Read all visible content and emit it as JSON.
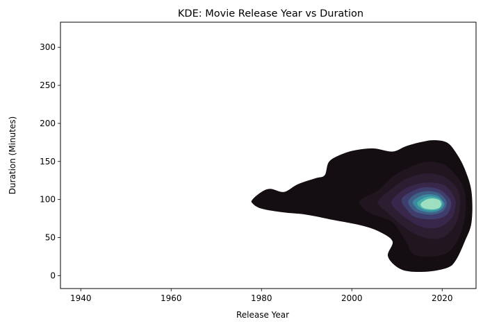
{
  "chart_data": {
    "type": "kde-contour",
    "title": "KDE: Movie Release Year vs Duration",
    "xlabel": "Release Year",
    "ylabel": "Duration (Minutes)",
    "xlim": [
      1935.5,
      2027.5
    ],
    "ylim": [
      -17,
      333
    ],
    "xticks": [
      1940,
      1960,
      1980,
      2000,
      2020
    ],
    "yticks": [
      0,
      50,
      100,
      150,
      200,
      250,
      300
    ],
    "grid": false,
    "legend": "none",
    "colormap": "mako",
    "levels": [
      {
        "level": 1,
        "color": "#140e12"
      },
      {
        "level": 2,
        "color": "#211620"
      },
      {
        "level": 3,
        "color": "#2c1d31"
      },
      {
        "level": 4,
        "color": "#38274a"
      },
      {
        "level": 5,
        "color": "#3f3d6b"
      },
      {
        "level": 6,
        "color": "#3f6187"
      },
      {
        "level": 7,
        "color": "#3c8aa0"
      },
      {
        "level": 8,
        "color": "#49b0a9"
      },
      {
        "level": 9,
        "color": "#9ddfc0"
      }
    ],
    "contours": [
      {
        "level": 1,
        "points": [
          [
            1978,
            100
          ],
          [
            1980,
            110
          ],
          [
            1982,
            114
          ],
          [
            1985,
            110
          ],
          [
            1988,
            120
          ],
          [
            1992,
            128
          ],
          [
            1994,
            132
          ],
          [
            1995,
            150
          ],
          [
            1998,
            160
          ],
          [
            2001,
            165
          ],
          [
            2005,
            167
          ],
          [
            2009,
            163
          ],
          [
            2012,
            170
          ],
          [
            2015,
            175
          ],
          [
            2018,
            178
          ],
          [
            2021,
            175
          ],
          [
            2023,
            162
          ],
          [
            2025,
            140
          ],
          [
            2026.5,
            110
          ],
          [
            2026.5,
            70
          ],
          [
            2025,
            45
          ],
          [
            2023,
            20
          ],
          [
            2021,
            10
          ],
          [
            2016,
            5
          ],
          [
            2011,
            8
          ],
          [
            2008,
            25
          ],
          [
            2009,
            45
          ],
          [
            2006,
            58
          ],
          [
            2002,
            66
          ],
          [
            1996,
            73
          ],
          [
            1990,
            80
          ],
          [
            1985,
            83
          ],
          [
            1980,
            88
          ],
          [
            1978,
            95
          ]
        ]
      },
      {
        "level": 2,
        "points": [
          [
            2002,
            100
          ],
          [
            2006,
            113
          ],
          [
            2009,
            130
          ],
          [
            2012,
            140
          ],
          [
            2016,
            149
          ],
          [
            2020,
            147
          ],
          [
            2023,
            132
          ],
          [
            2025,
            110
          ],
          [
            2025,
            75
          ],
          [
            2023,
            42
          ],
          [
            2020,
            27
          ],
          [
            2014,
            27
          ],
          [
            2012,
            45
          ],
          [
            2009,
            70
          ],
          [
            2004,
            82
          ],
          [
            2002,
            92
          ]
        ]
      },
      {
        "level": 3,
        "points": [
          [
            2006,
            100
          ],
          [
            2009,
            115
          ],
          [
            2012,
            127
          ],
          [
            2016,
            134
          ],
          [
            2020,
            131
          ],
          [
            2023,
            117
          ],
          [
            2024,
            97
          ],
          [
            2023,
            68
          ],
          [
            2020,
            50
          ],
          [
            2016,
            50
          ],
          [
            2012,
            62
          ],
          [
            2008,
            82
          ],
          [
            2006,
            93
          ]
        ]
      },
      {
        "level": 4,
        "points": [
          [
            2009,
            100
          ],
          [
            2012,
            115
          ],
          [
            2016,
            122
          ],
          [
            2020,
            120
          ],
          [
            2022,
            110
          ],
          [
            2023,
            95
          ],
          [
            2022,
            75
          ],
          [
            2019,
            63
          ],
          [
            2015,
            65
          ],
          [
            2011,
            80
          ],
          [
            2009,
            92
          ]
        ]
      },
      {
        "level": 5,
        "points": [
          [
            2011,
            100
          ],
          [
            2013,
            110
          ],
          [
            2016,
            116
          ],
          [
            2019,
            114
          ],
          [
            2021,
            106
          ],
          [
            2022,
            95
          ],
          [
            2021,
            80
          ],
          [
            2018,
            74
          ],
          [
            2014,
            77
          ],
          [
            2012,
            88
          ]
        ]
      },
      {
        "level": 6,
        "points": [
          [
            2012.5,
            98
          ],
          [
            2014,
            107
          ],
          [
            2016.5,
            111
          ],
          [
            2019,
            109
          ],
          [
            2020.5,
            102
          ],
          [
            2021,
            94
          ],
          [
            2020,
            84
          ],
          [
            2017.5,
            80
          ],
          [
            2014.5,
            83
          ],
          [
            2013,
            90
          ]
        ]
      },
      {
        "level": 7,
        "points": [
          [
            2013.5,
            97
          ],
          [
            2015,
            104
          ],
          [
            2017,
            107
          ],
          [
            2019,
            105
          ],
          [
            2020,
            99
          ],
          [
            2020.5,
            93
          ],
          [
            2019.5,
            86
          ],
          [
            2017.5,
            83
          ],
          [
            2015,
            86
          ],
          [
            2014,
            91
          ]
        ]
      },
      {
        "level": 8,
        "points": [
          [
            2014.5,
            96
          ],
          [
            2016,
            102
          ],
          [
            2017.5,
            104
          ],
          [
            2019,
            102
          ],
          [
            2020,
            97
          ],
          [
            2019.8,
            90
          ],
          [
            2018.5,
            86
          ],
          [
            2016.5,
            86
          ],
          [
            2015,
            90
          ]
        ]
      },
      {
        "level": 9,
        "points": [
          [
            2015.3,
            95
          ],
          [
            2016.5,
            100
          ],
          [
            2018,
            101.5
          ],
          [
            2019.4,
            99
          ],
          [
            2019.8,
            94
          ],
          [
            2019.3,
            89
          ],
          [
            2017.8,
            87
          ],
          [
            2016.2,
            88
          ],
          [
            2015.4,
            91
          ]
        ]
      }
    ]
  }
}
